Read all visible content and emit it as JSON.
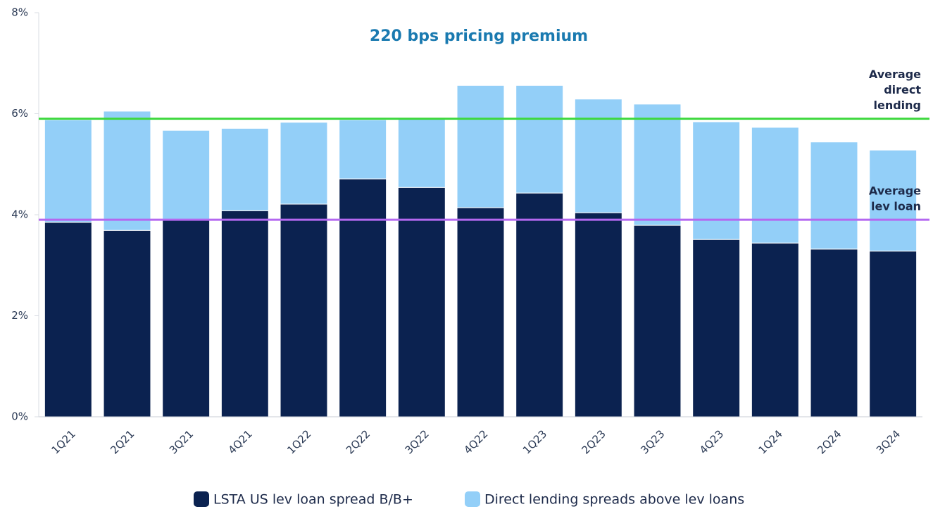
{
  "chart_data": {
    "type": "stacked_bar",
    "title": "220 bps pricing premium",
    "categories": [
      "1Q21",
      "2Q21",
      "3Q21",
      "4Q21",
      "1Q22",
      "2Q22",
      "3Q22",
      "4Q22",
      "1Q23",
      "2Q23",
      "3Q23",
      "4Q23",
      "1Q24",
      "2Q24",
      "3Q24"
    ],
    "series": [
      {
        "name": "LSTA US lev loan spread B/B+",
        "color": "#0b2250",
        "values": [
          3.85,
          3.69,
          3.89,
          4.08,
          4.21,
          4.71,
          4.54,
          4.14,
          4.43,
          4.04,
          3.79,
          3.51,
          3.44,
          3.32,
          3.28
        ]
      },
      {
        "name": "Direct lending spreads above lev loans",
        "color": "#93cff8",
        "values": [
          2.03,
          2.36,
          1.78,
          1.63,
          1.62,
          1.17,
          1.37,
          2.42,
          2.13,
          2.25,
          2.4,
          2.33,
          2.29,
          2.12,
          2.0
        ]
      }
    ],
    "ylim": [
      0,
      8
    ],
    "yticks": [
      {
        "value": 0,
        "label": "0%"
      },
      {
        "value": 2,
        "label": "2%"
      },
      {
        "value": 4,
        "label": "4%"
      },
      {
        "value": 6,
        "label": "6%"
      },
      {
        "value": 8,
        "label": "8%"
      }
    ],
    "reference_lines": [
      {
        "label": [
          "Average",
          "direct",
          "lending"
        ],
        "value": 5.9,
        "color": "#3dd83d"
      },
      {
        "label": [
          "Average",
          "lev loan"
        ],
        "value": 3.9,
        "color": "#b468f0"
      }
    ],
    "legend": "bottom"
  }
}
